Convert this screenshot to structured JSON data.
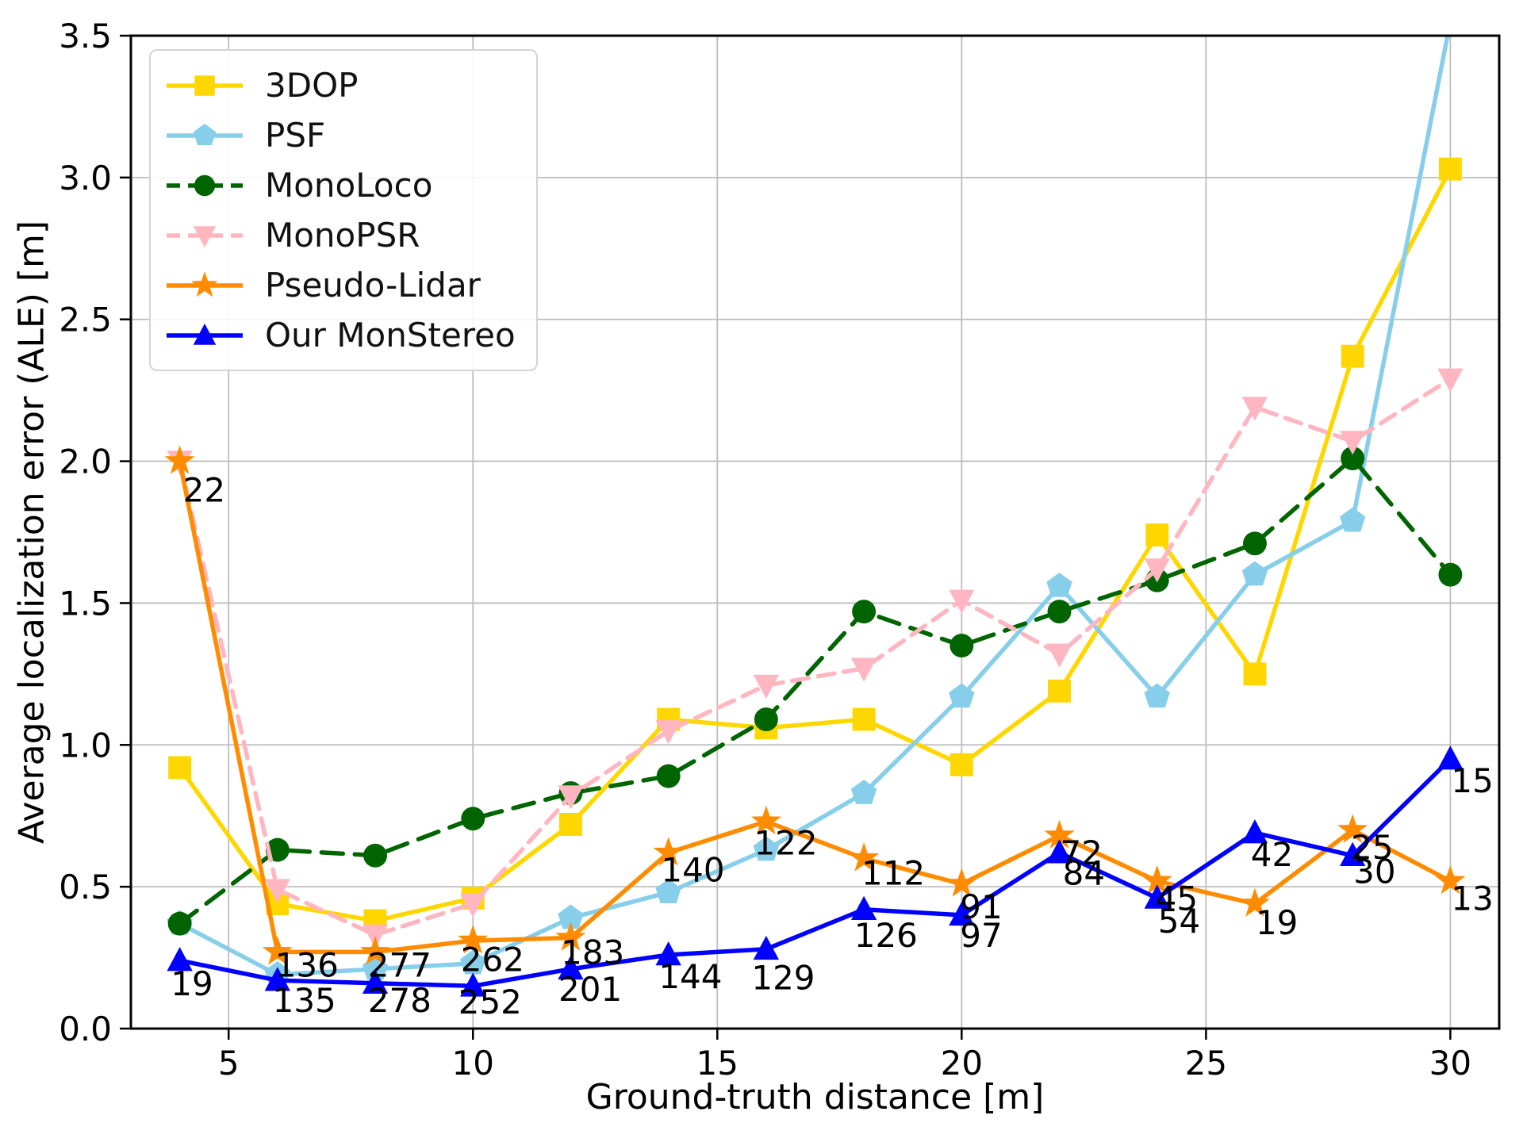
{
  "chart_data": {
    "type": "line",
    "title": "",
    "xlabel": "Ground-truth distance [m]",
    "ylabel": "Average localization error (ALE) [m]",
    "xlim": [
      3,
      31
    ],
    "ylim": [
      0,
      3.5
    ],
    "x_ticks": [
      5,
      10,
      15,
      20,
      25,
      30
    ],
    "y_ticks": [
      "0.0",
      "0.5",
      "1.0",
      "1.5",
      "2.0",
      "2.5",
      "3.0",
      "3.5"
    ],
    "grid": true,
    "legend_position": "upper-left",
    "x": [
      4,
      6,
      8,
      10,
      12,
      14,
      16,
      18,
      20,
      22,
      24,
      26,
      28,
      30
    ],
    "series": [
      {
        "name": "3DOP",
        "color": "#FFD700",
        "marker": "square",
        "dash": "solid",
        "values": [
          0.92,
          0.44,
          0.38,
          0.46,
          0.72,
          1.09,
          1.06,
          1.09,
          0.93,
          1.19,
          1.74,
          1.25,
          2.37,
          3.03
        ]
      },
      {
        "name": "PSF",
        "color": "#87CEEB",
        "marker": "pentagon",
        "dash": "solid",
        "values": [
          0.37,
          0.19,
          0.21,
          0.23,
          0.39,
          0.48,
          0.63,
          0.83,
          1.17,
          1.56,
          1.17,
          1.6,
          1.79,
          3.55
        ]
      },
      {
        "name": "MonoLoco",
        "color": "#006400",
        "marker": "circle",
        "dash": "dashed",
        "values": [
          0.37,
          0.63,
          0.61,
          0.74,
          0.83,
          0.89,
          1.09,
          1.47,
          1.35,
          1.47,
          1.58,
          1.71,
          2.01,
          1.6
        ]
      },
      {
        "name": "MonoPSR",
        "color": "#FFB6C1",
        "marker": "triangle-down",
        "dash": "dashed",
        "values": [
          2.0,
          0.49,
          0.33,
          0.44,
          0.82,
          1.05,
          1.21,
          1.27,
          1.51,
          1.32,
          1.62,
          2.19,
          2.07,
          2.29
        ]
      },
      {
        "name": "Pseudo-Lidar",
        "color": "#FF8C00",
        "marker": "star",
        "dash": "solid",
        "values": [
          2.0,
          0.27,
          0.27,
          0.31,
          0.32,
          0.62,
          0.73,
          0.6,
          0.51,
          0.68,
          0.52,
          0.44,
          0.7,
          0.52
        ]
      },
      {
        "name": "Our MonStereo",
        "color": "#0000FF",
        "marker": "triangle-up",
        "dash": "solid",
        "values": [
          0.24,
          0.17,
          0.16,
          0.15,
          0.21,
          0.26,
          0.28,
          0.42,
          0.4,
          0.62,
          0.46,
          0.69,
          0.61,
          0.95
        ]
      }
    ],
    "annotations": [
      {
        "text": "22",
        "x": 4.5,
        "y": 1.9
      },
      {
        "text": "19",
        "x": 4.25,
        "y": 0.16
      },
      {
        "text": "136",
        "x": 6.6,
        "y": 0.225
      },
      {
        "text": "135",
        "x": 6.55,
        "y": 0.1
      },
      {
        "text": "277",
        "x": 8.5,
        "y": 0.225
      },
      {
        "text": "278",
        "x": 8.5,
        "y": 0.1
      },
      {
        "text": "262",
        "x": 10.4,
        "y": 0.245
      },
      {
        "text": "252",
        "x": 10.35,
        "y": 0.095
      },
      {
        "text": "183",
        "x": 12.45,
        "y": 0.27
      },
      {
        "text": "201",
        "x": 12.4,
        "y": 0.14
      },
      {
        "text": "140",
        "x": 14.5,
        "y": 0.56
      },
      {
        "text": "144",
        "x": 14.45,
        "y": 0.185
      },
      {
        "text": "122",
        "x": 16.4,
        "y": 0.655
      },
      {
        "text": "129",
        "x": 16.35,
        "y": 0.18
      },
      {
        "text": "112",
        "x": 18.6,
        "y": 0.55
      },
      {
        "text": "126",
        "x": 18.45,
        "y": 0.33
      },
      {
        "text": "91",
        "x": 20.4,
        "y": 0.43
      },
      {
        "text": "97",
        "x": 20.4,
        "y": 0.33
      },
      {
        "text": "72",
        "x": 22.45,
        "y": 0.62
      },
      {
        "text": "84",
        "x": 22.5,
        "y": 0.55
      },
      {
        "text": "45",
        "x": 24.4,
        "y": 0.46
      },
      {
        "text": "54",
        "x": 24.45,
        "y": 0.38
      },
      {
        "text": "42",
        "x": 26.35,
        "y": 0.615
      },
      {
        "text": "19",
        "x": 26.45,
        "y": 0.375
      },
      {
        "text": "25",
        "x": 28.4,
        "y": 0.64
      },
      {
        "text": "30",
        "x": 28.45,
        "y": 0.555
      },
      {
        "text": "15",
        "x": 30.45,
        "y": 0.875
      },
      {
        "text": "13",
        "x": 30.45,
        "y": 0.46
      }
    ]
  }
}
